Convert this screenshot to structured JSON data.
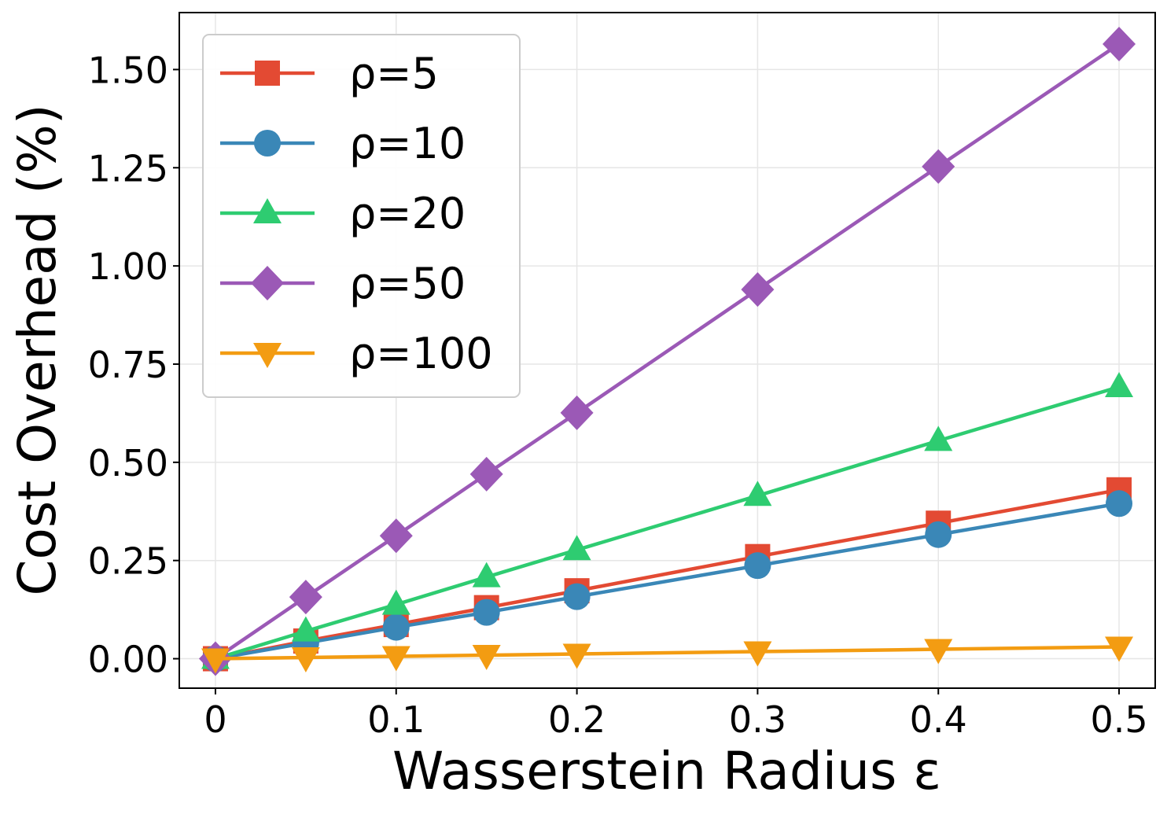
{
  "chart_data": {
    "type": "line",
    "xlabel": "Wasserstein Radius ε",
    "ylabel": "Cost Overhead (%)",
    "x": [
      0,
      0.05,
      0.1,
      0.15,
      0.2,
      0.3,
      0.4,
      0.5
    ],
    "xticks": [
      "0",
      "0.1",
      "0.2",
      "0.3",
      "0.4",
      "0.5"
    ],
    "xtick_values": [
      0,
      0.1,
      0.2,
      0.3,
      0.4,
      0.5
    ],
    "yticks": [
      "0.00",
      "0.25",
      "0.50",
      "0.75",
      "1.00",
      "1.25",
      "1.50"
    ],
    "ytick_values": [
      0,
      0.25,
      0.5,
      0.75,
      1.0,
      1.25,
      1.5
    ],
    "xlim": [
      -0.02,
      0.52
    ],
    "ylim": [
      -0.075,
      1.645
    ],
    "grid": true,
    "legend_position": "top-left",
    "series": [
      {
        "name": "ρ=5",
        "color": "#e34a33",
        "marker": "square",
        "values": [
          0,
          0.045,
          0.087,
          0.13,
          0.173,
          0.26,
          0.345,
          0.43
        ]
      },
      {
        "name": "ρ=10",
        "color": "#3a87b7",
        "marker": "circle",
        "values": [
          0,
          0.04,
          0.08,
          0.118,
          0.158,
          0.237,
          0.316,
          0.395
        ]
      },
      {
        "name": "ρ=20",
        "color": "#2ecc71",
        "marker": "triangle-up",
        "values": [
          0,
          0.07,
          0.138,
          0.208,
          0.277,
          0.415,
          0.555,
          0.692
        ]
      },
      {
        "name": "ρ=50",
        "color": "#9b59b6",
        "marker": "diamond",
        "values": [
          0,
          0.157,
          0.313,
          0.47,
          0.626,
          0.94,
          1.253,
          1.565
        ]
      },
      {
        "name": "ρ=100",
        "color": "#f39c12",
        "marker": "triangle-down",
        "values": [
          0,
          0.003,
          0.006,
          0.009,
          0.012,
          0.018,
          0.024,
          0.03
        ]
      }
    ]
  }
}
